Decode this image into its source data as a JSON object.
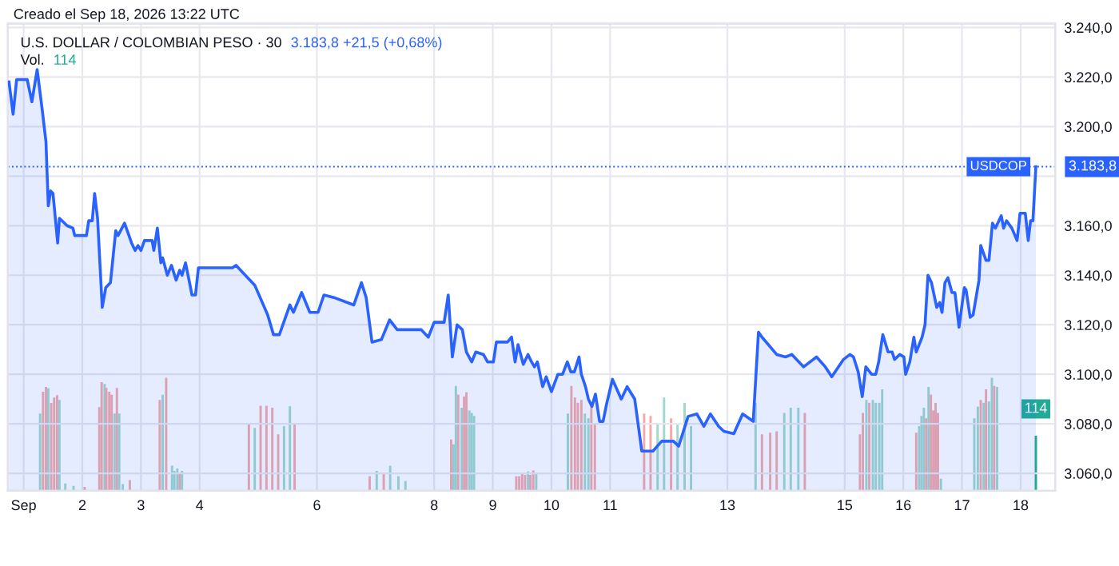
{
  "chart_data": {
    "type": "area",
    "title": "U.S. DOLLAR / COLOMBIAN PESO · 30",
    "subtitle": "3.183,8 +21,5 (+0,68%)",
    "annotations": [
      "Creado el Sep 18, 2026 13:22 UTC",
      "Vol.",
      "3.183,8"
    ],
    "xlim": [
      0.73,
      18.59
    ],
    "xticks": [
      {
        "value": 1,
        "label": "Sep"
      },
      2,
      3,
      4,
      6,
      8,
      9,
      10,
      11,
      13,
      15,
      16,
      17,
      18
    ],
    "ylim": [
      3053,
      3241.5
    ],
    "yticks": [
      {
        "value": 3060,
        "label": "3.060,0"
      },
      {
        "value": 3080,
        "label": "3.080,0"
      },
      {
        "value": 3100,
        "label": "3.100,0"
      },
      {
        "value": 3120,
        "label": "3.120,0"
      },
      {
        "value": 3140,
        "label": "3.140,0"
      },
      {
        "value": 3160,
        "label": "3.160,0"
      },
      {
        "value": 3180,
        "label": null
      },
      {
        "value": 3200,
        "label": "3.200,0"
      },
      {
        "value": 3220,
        "label": "3.220,0"
      },
      {
        "value": 3240,
        "label": "3.240,0"
      }
    ],
    "y2lim": [
      0,
      967
    ],
    "grid": true,
    "ref_lines": [
      {
        "axis": "y",
        "value": 3183.8,
        "label": "USDCOP",
        "color": "#2962ff",
        "line_style": "dotted"
      }
    ],
    "series": [
      {
        "color": "#2962ff",
        "x": [
          0.75,
          0.82,
          0.88,
          1.06,
          1.14,
          1.23,
          1.31,
          1.38,
          1.42,
          1.46,
          1.5,
          1.58,
          1.61,
          1.74,
          1.84,
          1.87,
          2.07,
          2.11,
          2.17,
          2.21,
          2.26,
          2.34,
          2.4,
          2.48,
          2.57,
          2.61,
          2.72,
          2.84,
          2.9,
          2.95,
          3.0,
          3.06,
          3.19,
          3.22,
          3.28,
          3.34,
          3.37,
          3.45,
          3.52,
          3.6,
          3.66,
          3.7,
          3.76,
          3.82,
          3.87,
          3.93,
          3.98,
          4.56,
          4.62,
          4.74,
          4.94,
          5.16,
          5.26,
          5.36,
          5.54,
          5.6,
          5.74,
          5.88,
          6.02,
          6.12,
          6.29,
          6.63,
          6.76,
          6.84,
          6.94,
          7.1,
          7.24,
          7.37,
          7.78,
          7.9,
          8.0,
          8.17,
          8.24,
          8.31,
          8.39,
          8.48,
          8.55,
          8.64,
          8.71,
          8.84,
          8.91,
          9.01,
          9.06,
          9.25,
          9.32,
          9.38,
          9.43,
          9.52,
          9.6,
          9.66,
          9.71,
          9.76,
          9.85,
          9.91,
          10.0,
          10.11,
          10.19,
          10.27,
          10.33,
          10.39,
          10.47,
          10.51,
          10.58,
          10.63,
          10.69,
          10.75,
          10.82,
          10.88,
          10.94,
          11.04,
          11.19,
          11.29,
          11.42,
          11.54,
          11.73,
          11.88,
          12.08,
          12.17,
          12.33,
          12.48,
          12.6,
          12.71,
          12.85,
          12.94,
          13.11,
          13.26,
          13.44,
          13.53,
          13.59,
          13.84,
          13.99,
          14.1,
          14.3,
          14.52,
          14.67,
          14.78,
          14.98,
          15.09,
          15.15,
          15.23,
          15.3,
          15.36,
          15.46,
          15.53,
          15.58,
          15.65,
          15.74,
          15.81,
          15.85,
          15.94,
          16.01,
          16.04,
          16.11,
          16.18,
          16.22,
          16.32,
          16.37,
          16.42,
          16.48,
          16.57,
          16.62,
          16.66,
          16.71,
          16.76,
          16.83,
          16.88,
          16.95,
          17.04,
          17.07,
          17.14,
          17.19,
          17.29,
          17.32,
          17.41,
          17.46,
          17.52,
          17.57,
          17.61,
          17.67,
          17.71,
          17.76,
          17.85,
          17.94,
          17.99,
          18.08,
          18.13,
          18.17,
          18.21,
          18.26
        ],
        "values": [
          3218,
          3205,
          3219,
          3219,
          3210,
          3223,
          3208,
          3194,
          3168,
          3174,
          3173,
          3153,
          3163,
          3160,
          3159,
          3156,
          3156,
          3162,
          3162,
          3173,
          3163,
          3127,
          3135,
          3137,
          3158,
          3156,
          3161,
          3153,
          3150,
          3152,
          3150,
          3154,
          3154,
          3150,
          3159,
          3145,
          3147,
          3140,
          3144,
          3138,
          3142,
          3140,
          3145,
          3138,
          3132,
          3132,
          3143,
          3143,
          3144,
          3141,
          3136,
          3124,
          3116,
          3116,
          3128,
          3125,
          3133,
          3125,
          3125,
          3132,
          3131,
          3128,
          3137,
          3131,
          3113,
          3114,
          3122,
          3118,
          3118,
          3115,
          3121,
          3121,
          3132,
          3107,
          3120,
          3118,
          3109,
          3105,
          3109,
          3108,
          3105,
          3105,
          3113,
          3113,
          3115,
          3105,
          3112,
          3104,
          3108,
          3105,
          3103,
          3105,
          3095,
          3099,
          3093,
          3100,
          3100,
          3105,
          3101,
          3101,
          3107,
          3100,
          3095,
          3090,
          3087,
          3092,
          3081,
          3081,
          3088,
          3098,
          3090,
          3095,
          3090,
          3069,
          3069,
          3073,
          3073,
          3071,
          3083,
          3084,
          3079,
          3084,
          3079,
          3077,
          3076,
          3084,
          3081,
          3117,
          3115,
          3108,
          3107,
          3108,
          3103,
          3107,
          3103,
          3099,
          3106,
          3108,
          3107,
          3101,
          3091,
          3103,
          3100,
          3100,
          3105,
          3116,
          3109,
          3109,
          3106,
          3108,
          3107,
          3100,
          3105,
          3115,
          3109,
          3115,
          3120,
          3140,
          3137,
          3127,
          3129,
          3125,
          3137,
          3139,
          3133,
          3133,
          3119,
          3135,
          3134,
          3123,
          3124,
          3138,
          3152,
          3146,
          3146,
          3161,
          3159,
          3161,
          3164,
          3159,
          3162,
          3159,
          3154,
          3165,
          3165,
          3154,
          3162,
          3162,
          3183.8
        ]
      },
      {
        "type": "bar",
        "axis": "y2",
        "x": [
          1.28,
          1.33,
          1.38,
          1.42,
          1.47,
          1.52,
          1.57,
          1.61,
          1.71,
          1.85,
          2.04,
          2.29,
          2.33,
          2.38,
          2.41,
          2.46,
          2.5,
          2.55,
          2.59,
          2.63,
          2.69,
          2.81,
          3.32,
          3.37,
          3.43,
          3.53,
          3.57,
          3.62,
          3.66,
          3.7,
          4.84,
          4.94,
          5.04,
          5.14,
          5.24,
          5.34,
          5.44,
          5.54,
          5.62,
          6.9,
          7.02,
          7.14,
          7.25,
          7.39,
          7.51,
          8.29,
          8.33,
          8.37,
          8.41,
          8.47,
          8.51,
          8.55,
          8.6,
          8.64,
          8.68,
          9.4,
          9.45,
          9.5,
          9.55,
          9.6,
          9.64,
          9.69,
          9.74,
          10.28,
          10.34,
          10.4,
          10.45,
          10.51,
          10.57,
          10.63,
          10.68,
          10.74,
          11.58,
          11.69,
          11.81,
          11.92,
          12.04,
          12.15,
          12.27,
          12.38,
          13.48,
          13.59,
          13.73,
          13.84,
          13.97,
          14.08,
          14.21,
          14.32,
          15.26,
          15.31,
          15.37,
          15.42,
          15.48,
          15.53,
          15.59,
          15.64,
          16.22,
          16.27,
          16.31,
          16.35,
          16.39,
          16.43,
          16.47,
          16.51,
          16.55,
          16.59,
          16.64,
          17.21,
          17.27,
          17.32,
          17.37,
          17.41,
          17.46,
          17.51,
          17.55,
          17.6,
          18.26
        ],
        "values": [
          160,
          205,
          215,
          212,
          182,
          193,
          198,
          188,
          15,
          10,
          8,
          173,
          225,
          221,
          213,
          205,
          199,
          160,
          213,
          160,
          14,
          22,
          188,
          199,
          234,
          52,
          41,
          46,
          36,
          41,
          137,
          130,
          176,
          176,
          172,
          117,
          134,
          175,
          139,
          30,
          41,
          36,
          52,
          30,
          20,
          106,
          96,
          217,
          199,
          172,
          195,
          204,
          166,
          161,
          155,
          30,
          30,
          36,
          33,
          40,
          33,
          42,
          36,
          160,
          217,
          193,
          182,
          188,
          160,
          150,
          174,
          139,
          160,
          155,
          139,
          193,
          150,
          139,
          182,
          134,
          182,
          117,
          120,
          123,
          161,
          172,
          172,
          161,
          117,
          161,
          188,
          182,
          188,
          182,
          182,
          210,
          120,
          134,
          155,
          172,
          150,
          215,
          199,
          166,
          182,
          161,
          25,
          150,
          174,
          188,
          182,
          210,
          185,
          234,
          217,
          215,
          114
        ],
        "colors": [
          "#9fd8cc",
          "#f5a9a9",
          "#f5a9a9",
          "#9fd8cc",
          "#f5a9a9",
          "#f5a9a9",
          "#f5a9a9",
          "#9fd8cc",
          "#9fd8cc",
          "#9fd8cc",
          "#f5a9a9",
          "#f5a9a9",
          "#f5a9a9",
          "#9fd8cc",
          "#f5a9a9",
          "#f5a9a9",
          "#f5a9a9",
          "#9fd8cc",
          "#f5a9a9",
          "#9fd8cc",
          "#9fd8cc",
          "#f5a9a9",
          "#f5a9a9",
          "#9fd8cc",
          "#f5a9a9",
          "#9fd8cc",
          "#9fd8cc",
          "#9fd8cc",
          "#f5a9a9",
          "#9fd8cc",
          "#f5a9a9",
          "#9fd8cc",
          "#f5a9a9",
          "#f5a9a9",
          "#f5a9a9",
          "#f5a9a9",
          "#9fd8cc",
          "#9fd8cc",
          "#f5a9a9",
          "#f5a9a9",
          "#9fd8cc",
          "#f5a9a9",
          "#9fd8cc",
          "#9fd8cc",
          "#9fd8cc",
          "#f5a9a9",
          "#9fd8cc",
          "#9fd8cc",
          "#f5a9a9",
          "#9fd8cc",
          "#f5a9a9",
          "#f5a9a9",
          "#9fd8cc",
          "#9fd8cc",
          "#9fd8cc",
          "#f5a9a9",
          "#f5a9a9",
          "#f5a9a9",
          "#f5a9a9",
          "#9fd8cc",
          "#f5a9a9",
          "#f5a9a9",
          "#9fd8cc",
          "#9fd8cc",
          "#f5a9a9",
          "#f5a9a9",
          "#f5a9a9",
          "#f5a9a9",
          "#9fd8cc",
          "#9fd8cc",
          "#f5a9a9",
          "#f5a9a9",
          "#f5a9a9",
          "#f5a9a9",
          "#9fd8cc",
          "#9fd8cc",
          "#f5a9a9",
          "#9fd8cc",
          "#9fd8cc",
          "#9fd8cc",
          "#9fd8cc",
          "#f5a9a9",
          "#f5a9a9",
          "#f5a9a9",
          "#9fd8cc",
          "#9fd8cc",
          "#9fd8cc",
          "#f5a9a9",
          "#f5a9a9",
          "#f5a9a9",
          "#9fd8cc",
          "#f5a9a9",
          "#9fd8cc",
          "#9fd8cc",
          "#9fd8cc",
          "#9fd8cc",
          "#f5a9a9",
          "#9fd8cc",
          "#9fd8cc",
          "#9fd8cc",
          "#f5a9a9",
          "#9fd8cc",
          "#f5a9a9",
          "#f5a9a9",
          "#f5a9a9",
          "#f5a9a9",
          "#9fd8cc",
          "#9fd8cc",
          "#9fd8cc",
          "#f5a9a9",
          "#9fd8cc",
          "#f5a9a9",
          "#9fd8cc",
          "#9fd8cc",
          "#f5a9a9",
          "#9fd8cc",
          "#22ab94"
        ],
        "value_labels": [
          null,
          null,
          null,
          null,
          null,
          null,
          null,
          null,
          null,
          null,
          null,
          null,
          null,
          null,
          null,
          null,
          null,
          null,
          null,
          null,
          null,
          null,
          null,
          null,
          null,
          null,
          null,
          null,
          null,
          null,
          null,
          null,
          null,
          null,
          null,
          null,
          null,
          null,
          null,
          null,
          null,
          null,
          null,
          null,
          null,
          null,
          null,
          null,
          null,
          null,
          null,
          null,
          null,
          null,
          null,
          null,
          null,
          null,
          null,
          null,
          null,
          null,
          null,
          null,
          null,
          null,
          null,
          null,
          null,
          null,
          null,
          null,
          null,
          null,
          null,
          null,
          null,
          null,
          null,
          null,
          null,
          null,
          null,
          null,
          null,
          null,
          null,
          null,
          null,
          null,
          null,
          null,
          null,
          null,
          null,
          null,
          null,
          null,
          null,
          null,
          null,
          null,
          null,
          null,
          null,
          null,
          null,
          null,
          null,
          null,
          null,
          null,
          null,
          null,
          null,
          null,
          "114"
        ]
      }
    ]
  }
}
